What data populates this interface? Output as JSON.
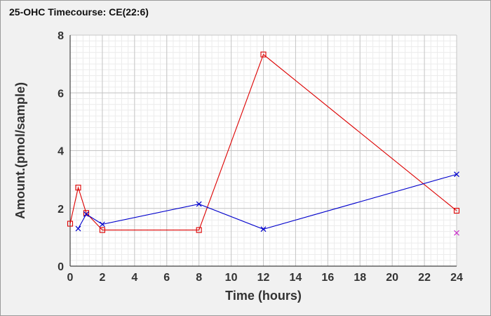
{
  "chart_data": {
    "type": "line",
    "title": "25-OHC Timecourse: CE(22:6)",
    "xlabel": "Time (hours)",
    "ylabel": "Amount.(pmol/sample)",
    "xlim": [
      0,
      24
    ],
    "ylim": [
      0,
      8
    ],
    "xticks": [
      0,
      2,
      4,
      6,
      8,
      10,
      12,
      14,
      16,
      18,
      20,
      22,
      24
    ],
    "yticks": [
      0,
      2,
      4,
      6,
      8
    ],
    "grid": true,
    "legend": "none",
    "series": [
      {
        "marker": "square",
        "color": "#dd0000",
        "connected": true,
        "x": [
          0,
          0.5,
          1,
          2,
          8,
          12,
          24
        ],
        "y": [
          1.47,
          2.72,
          1.84,
          1.25,
          1.25,
          7.33,
          1.92
        ]
      },
      {
        "marker": "x",
        "color": "#0000cc",
        "connected": true,
        "x": [
          0.5,
          1,
          2,
          8,
          12,
          24
        ],
        "y": [
          1.3,
          1.8,
          1.45,
          2.15,
          1.28,
          3.18
        ]
      },
      {
        "marker": "x",
        "color": "#cc33cc",
        "connected": false,
        "x": [
          24
        ],
        "y": [
          1.15
        ]
      }
    ]
  }
}
